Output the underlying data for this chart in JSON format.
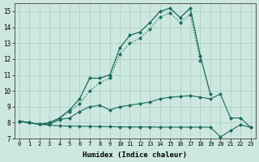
{
  "xlabel": "Humidex (Indice chaleur)",
  "x": [
    0,
    1,
    2,
    3,
    4,
    5,
    6,
    7,
    8,
    9,
    10,
    11,
    12,
    13,
    14,
    15,
    16,
    17,
    18,
    19,
    20,
    21,
    22,
    23
  ],
  "line1": [
    8.1,
    8.0,
    7.9,
    7.85,
    7.8,
    7.79,
    7.78,
    7.77,
    7.76,
    7.75,
    7.74,
    7.73,
    7.73,
    7.73,
    7.72,
    7.72,
    7.72,
    7.72,
    7.72,
    7.72,
    7.1,
    7.5,
    7.88,
    7.7
  ],
  "line2": [
    8.1,
    8.0,
    7.9,
    7.9,
    8.2,
    8.3,
    8.7,
    9.0,
    9.1,
    8.8,
    9.0,
    9.1,
    9.2,
    9.3,
    9.5,
    9.6,
    9.65,
    9.7,
    9.6,
    9.5,
    9.8,
    8.3,
    8.3,
    7.7
  ],
  "line3_x": [
    0,
    1,
    2,
    3,
    4,
    5,
    6,
    7,
    8,
    9,
    10,
    11,
    12,
    13,
    14,
    15,
    16,
    17,
    18,
    19
  ],
  "line3": [
    8.1,
    8.0,
    7.9,
    8.0,
    8.3,
    8.8,
    9.5,
    10.8,
    10.8,
    11.0,
    12.7,
    13.5,
    13.7,
    14.3,
    15.0,
    15.2,
    14.6,
    15.2,
    12.2,
    9.8
  ],
  "line4_x": [
    0,
    1,
    2,
    3,
    4,
    5,
    6,
    7,
    8,
    9,
    10,
    11,
    12,
    13,
    14,
    15,
    16,
    17,
    18
  ],
  "line4": [
    8.1,
    8.0,
    7.9,
    8.0,
    8.25,
    8.7,
    9.2,
    10.0,
    10.5,
    10.8,
    12.3,
    13.0,
    13.3,
    13.9,
    14.65,
    14.9,
    14.3,
    14.8,
    11.9
  ],
  "bg_color": "#cde8e0",
  "line_color": "#1a6b5a",
  "grid_color": "#aaccbf",
  "ylim": [
    7,
    15.5
  ],
  "xlim": [
    -0.5,
    23.5
  ]
}
